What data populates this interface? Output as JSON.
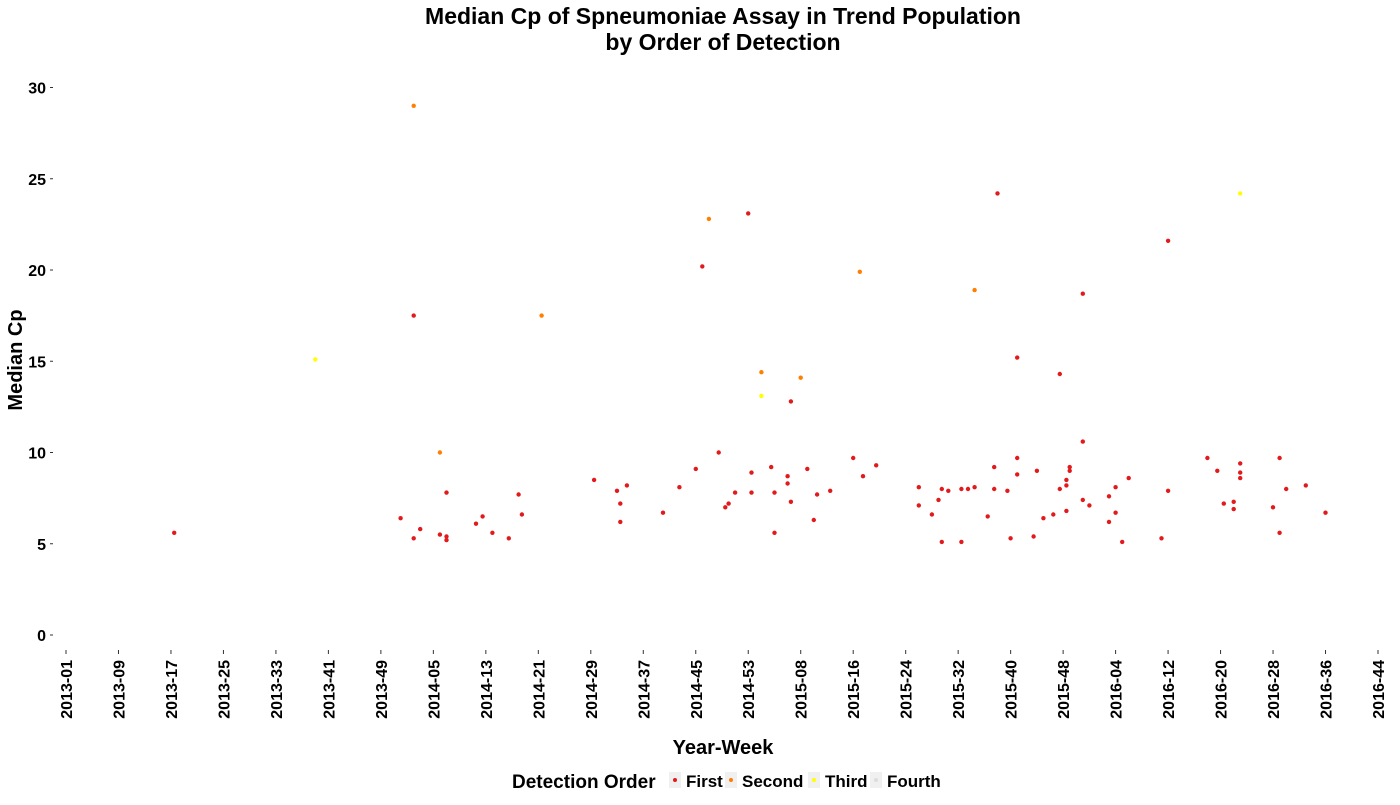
{
  "chart_data": {
    "type": "scatter",
    "title": [
      "Median Cp of Spneumoniae Assay in Trend Population",
      "by Order of Detection"
    ],
    "xlabel": "Year-Week",
    "ylabel": "Median Cp",
    "grid": false,
    "x_categories": [
      "2013-01",
      "2013-09",
      "2013-17",
      "2013-25",
      "2013-33",
      "2013-41",
      "2013-49",
      "2014-05",
      "2014-13",
      "2014-21",
      "2014-29",
      "2014-37",
      "2014-45",
      "2014-53",
      "2015-08",
      "2015-16",
      "2015-24",
      "2015-32",
      "2015-40",
      "2015-48",
      "2016-04",
      "2016-12",
      "2016-20",
      "2016-28",
      "2016-36",
      "2016-44"
    ],
    "x_note": "x values are week indices counted from 2013-01 (0); tick categories are every 8 weeks",
    "ylim": [
      -1,
      31
    ],
    "yticks": [
      0,
      5,
      10,
      15,
      20,
      25,
      30
    ],
    "legend": {
      "title": "Detection Order",
      "position": "bottom",
      "entries": [
        {
          "name": "First",
          "color": "#e31a1c"
        },
        {
          "name": "Second",
          "color": "#ff7f00"
        },
        {
          "name": "Third",
          "color": "#ffff00"
        },
        {
          "name": "Fourth",
          "color": "#dddddd"
        }
      ]
    },
    "series": [
      {
        "name": "First",
        "color": "#e31a1c",
        "points": [
          [
            16.5,
            5.6
          ],
          [
            51,
            6.4
          ],
          [
            53,
            17.5
          ],
          [
            53,
            5.3
          ],
          [
            54,
            5.8
          ],
          [
            57,
            5.5
          ],
          [
            58,
            7.8
          ],
          [
            58,
            5.4
          ],
          [
            58,
            5.2
          ],
          [
            62.5,
            6.1
          ],
          [
            63.5,
            6.5
          ],
          [
            65,
            5.6
          ],
          [
            67.5,
            5.3
          ],
          [
            69,
            7.7
          ],
          [
            69.5,
            6.6
          ],
          [
            80.5,
            8.5
          ],
          [
            84,
            7.9
          ],
          [
            84.5,
            7.2
          ],
          [
            84.5,
            6.2
          ],
          [
            85.5,
            8.2
          ],
          [
            91,
            6.7
          ],
          [
            93.5,
            8.1
          ],
          [
            96,
            9.1
          ],
          [
            97,
            20.2
          ],
          [
            99.5,
            10.0
          ],
          [
            100.5,
            7.0
          ],
          [
            101,
            7.2
          ],
          [
            102,
            7.8
          ],
          [
            104,
            23.1
          ],
          [
            104.5,
            7.8
          ],
          [
            104.5,
            8.9
          ],
          [
            107.5,
            9.2
          ],
          [
            108,
            7.8
          ],
          [
            108,
            5.6
          ],
          [
            110,
            8.7
          ],
          [
            110,
            8.3
          ],
          [
            110.5,
            7.3
          ],
          [
            110.5,
            12.8
          ],
          [
            113,
            9.1
          ],
          [
            114,
            6.3
          ],
          [
            114.5,
            7.7
          ],
          [
            116.5,
            7.9
          ],
          [
            120,
            9.7
          ],
          [
            121.5,
            8.7
          ],
          [
            123.5,
            9.3
          ],
          [
            130,
            8.1
          ],
          [
            130,
            7.1
          ],
          [
            132,
            6.6
          ],
          [
            133,
            7.4
          ],
          [
            133.5,
            5.1
          ],
          [
            133.5,
            8.0
          ],
          [
            134.5,
            7.9
          ],
          [
            136.5,
            8.0
          ],
          [
            136.5,
            5.1
          ],
          [
            137.5,
            8.0
          ],
          [
            138.5,
            8.1
          ],
          [
            140.5,
            6.5
          ],
          [
            141.5,
            8.0
          ],
          [
            141.5,
            9.2
          ],
          [
            142,
            24.2
          ],
          [
            143.5,
            7.9
          ],
          [
            144,
            5.3
          ],
          [
            145,
            15.2
          ],
          [
            145,
            9.7
          ],
          [
            145,
            8.8
          ],
          [
            147.5,
            5.4
          ],
          [
            148,
            9.0
          ],
          [
            149,
            6.4
          ],
          [
            150.5,
            6.6
          ],
          [
            151.5,
            8.0
          ],
          [
            151.5,
            14.3
          ],
          [
            152.5,
            8.2
          ],
          [
            152.5,
            8.5
          ],
          [
            152.5,
            6.8
          ],
          [
            153,
            9.0
          ],
          [
            153,
            9.2
          ],
          [
            155,
            18.7
          ],
          [
            155,
            10.6
          ],
          [
            155,
            7.4
          ],
          [
            156,
            7.1
          ],
          [
            159,
            6.2
          ],
          [
            159,
            7.6
          ],
          [
            160,
            6.7
          ],
          [
            160,
            8.1
          ],
          [
            161,
            5.1
          ],
          [
            162,
            8.6
          ],
          [
            167,
            5.3
          ],
          [
            168,
            21.6
          ],
          [
            168,
            7.9
          ],
          [
            174,
            9.7
          ],
          [
            175.5,
            9.0
          ],
          [
            176.5,
            7.2
          ],
          [
            178,
            6.9
          ],
          [
            178,
            7.3
          ],
          [
            179,
            8.6
          ],
          [
            179,
            8.9
          ],
          [
            179,
            9.4
          ],
          [
            184,
            7.0
          ],
          [
            185,
            5.6
          ],
          [
            185,
            9.7
          ],
          [
            186,
            8.0
          ],
          [
            189,
            8.2
          ],
          [
            192,
            6.7
          ]
        ]
      },
      {
        "name": "Second",
        "color": "#ff7f00",
        "points": [
          [
            53,
            29.0
          ],
          [
            57,
            10.0
          ],
          [
            72.5,
            17.5
          ],
          [
            98,
            22.8
          ],
          [
            106,
            14.4
          ],
          [
            112,
            14.1
          ],
          [
            121,
            19.9
          ],
          [
            138.5,
            18.9
          ]
        ]
      },
      {
        "name": "Third",
        "color": "#ffff00",
        "points": [
          [
            38,
            15.1
          ],
          [
            106,
            13.1
          ],
          [
            179,
            24.2
          ]
        ]
      },
      {
        "name": "Fourth",
        "color": "#dddddd",
        "points": []
      }
    ]
  }
}
